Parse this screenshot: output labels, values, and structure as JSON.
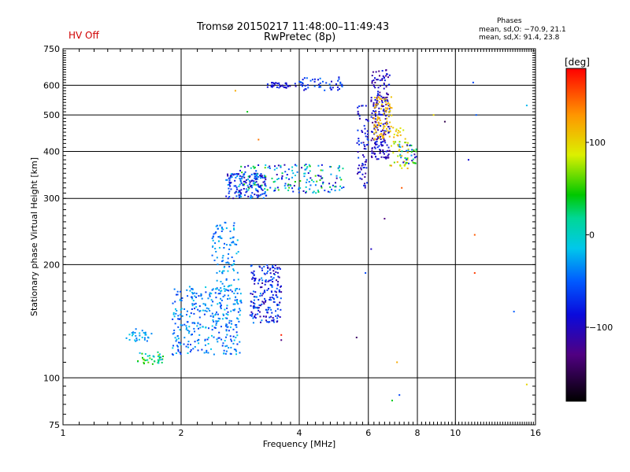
{
  "header": {
    "title_line1": "Tromsø 20150217 11:48:00–11:49:43",
    "title_line2": "RwPretec (8p)",
    "hv_status": "HV Off",
    "phases_title": "Phases",
    "phases_o": "mean, sd,O: −70.9, 21.1",
    "phases_x": "mean, sd,X:  91.4, 23.8"
  },
  "colorbar": {
    "label": "[deg]",
    "ticks": [
      "100",
      "0",
      "−100"
    ],
    "tick_values": [
      100,
      0,
      -100
    ],
    "range": [
      -180,
      180
    ]
  },
  "chart_data": {
    "type": "scatter",
    "xlabel": "Frequency [MHz]",
    "ylabel": "Stationary phase Virtual Height [km]",
    "x_scale": "log",
    "y_scale": "log",
    "xlim": [
      1,
      16
    ],
    "ylim": [
      75,
      750
    ],
    "x_ticks": [
      1,
      2,
      4,
      6,
      8,
      10,
      16
    ],
    "x_tick_labels": [
      "1",
      "2",
      "4",
      "6",
      "8",
      "10",
      "16"
    ],
    "y_ticks": [
      75,
      100,
      200,
      300,
      400,
      500,
      600,
      750
    ],
    "y_tick_labels": [
      "75",
      "100",
      "200",
      "300",
      "400",
      "500",
      "600",
      "750"
    ],
    "grid": true,
    "color_quantity": "phase [deg]",
    "clusters": [
      {
        "x": [
          1.55,
          1.8
        ],
        "y": [
          108,
          117
        ],
        "n": 40,
        "phase": [
          -30,
          80
        ]
      },
      {
        "x": [
          1.45,
          1.7
        ],
        "y": [
          125,
          135
        ],
        "n": 30,
        "phase": [
          -50,
          -10
        ]
      },
      {
        "x": [
          1.9,
          2.85
        ],
        "y": [
          115,
          175
        ],
        "n": 320,
        "phase": [
          -70,
          -10
        ]
      },
      {
        "x": [
          2.4,
          2.8
        ],
        "y": [
          170,
          260
        ],
        "n": 110,
        "phase": [
          -60,
          -10
        ]
      },
      {
        "x": [
          3.0,
          3.6
        ],
        "y": [
          140,
          200
        ],
        "n": 200,
        "phase": [
          -120,
          -30
        ]
      },
      {
        "x": [
          2.6,
          3.3
        ],
        "y": [
          300,
          350
        ],
        "n": 170,
        "phase": [
          -120,
          -20
        ]
      },
      {
        "x": [
          2.8,
          5.2
        ],
        "y": [
          310,
          370
        ],
        "n": 170,
        "phase": [
          -110,
          60
        ]
      },
      {
        "x": [
          3.3,
          4.0
        ],
        "y": [
          590,
          610
        ],
        "n": 35,
        "phase": [
          -110,
          -70
        ]
      },
      {
        "x": [
          4.0,
          5.2
        ],
        "y": [
          580,
          630
        ],
        "n": 50,
        "phase": [
          -100,
          -40
        ]
      },
      {
        "x": [
          5.6,
          6.0
        ],
        "y": [
          320,
          530
        ],
        "n": 70,
        "phase": [
          -120,
          -60
        ]
      },
      {
        "x": [
          6.1,
          6.8
        ],
        "y": [
          380,
          660
        ],
        "n": 210,
        "phase": [
          -130,
          -70
        ]
      },
      {
        "x": [
          6.2,
          6.9
        ],
        "y": [
          430,
          560
        ],
        "n": 80,
        "phase": [
          100,
          130
        ]
      },
      {
        "x": [
          6.8,
          7.6
        ],
        "y": [
          360,
          470
        ],
        "n": 50,
        "phase": [
          60,
          130
        ]
      },
      {
        "x": [
          7.2,
          8.0
        ],
        "y": [
          370,
          420
        ],
        "n": 35,
        "phase": [
          -120,
          80
        ]
      }
    ],
    "points": [
      {
        "x": 2.75,
        "y": 580,
        "phase": 120
      },
      {
        "x": 2.95,
        "y": 510,
        "phase": 40
      },
      {
        "x": 3.15,
        "y": 430,
        "phase": 140
      },
      {
        "x": 3.6,
        "y": 130,
        "phase": 170
      },
      {
        "x": 3.6,
        "y": 126,
        "phase": -130
      },
      {
        "x": 5.6,
        "y": 128,
        "phase": -140
      },
      {
        "x": 6.1,
        "y": 220,
        "phase": -100
      },
      {
        "x": 5.9,
        "y": 190,
        "phase": -60
      },
      {
        "x": 6.6,
        "y": 265,
        "phase": -130
      },
      {
        "x": 7.1,
        "y": 110,
        "phase": 120
      },
      {
        "x": 6.9,
        "y": 87,
        "phase": 40
      },
      {
        "x": 7.2,
        "y": 90,
        "phase": -60
      },
      {
        "x": 7.3,
        "y": 320,
        "phase": 150
      },
      {
        "x": 8.8,
        "y": 500,
        "phase": 100
      },
      {
        "x": 9.4,
        "y": 480,
        "phase": -150
      },
      {
        "x": 10.8,
        "y": 380,
        "phase": -90
      },
      {
        "x": 11.2,
        "y": 240,
        "phase": 150
      },
      {
        "x": 11.2,
        "y": 190,
        "phase": 160
      },
      {
        "x": 11.1,
        "y": 610,
        "phase": -60
      },
      {
        "x": 11.3,
        "y": 500,
        "phase": -50
      },
      {
        "x": 14.1,
        "y": 150,
        "phase": -50
      },
      {
        "x": 15.2,
        "y": 530,
        "phase": -20
      },
      {
        "x": 15.2,
        "y": 96,
        "phase": 100
      }
    ]
  }
}
